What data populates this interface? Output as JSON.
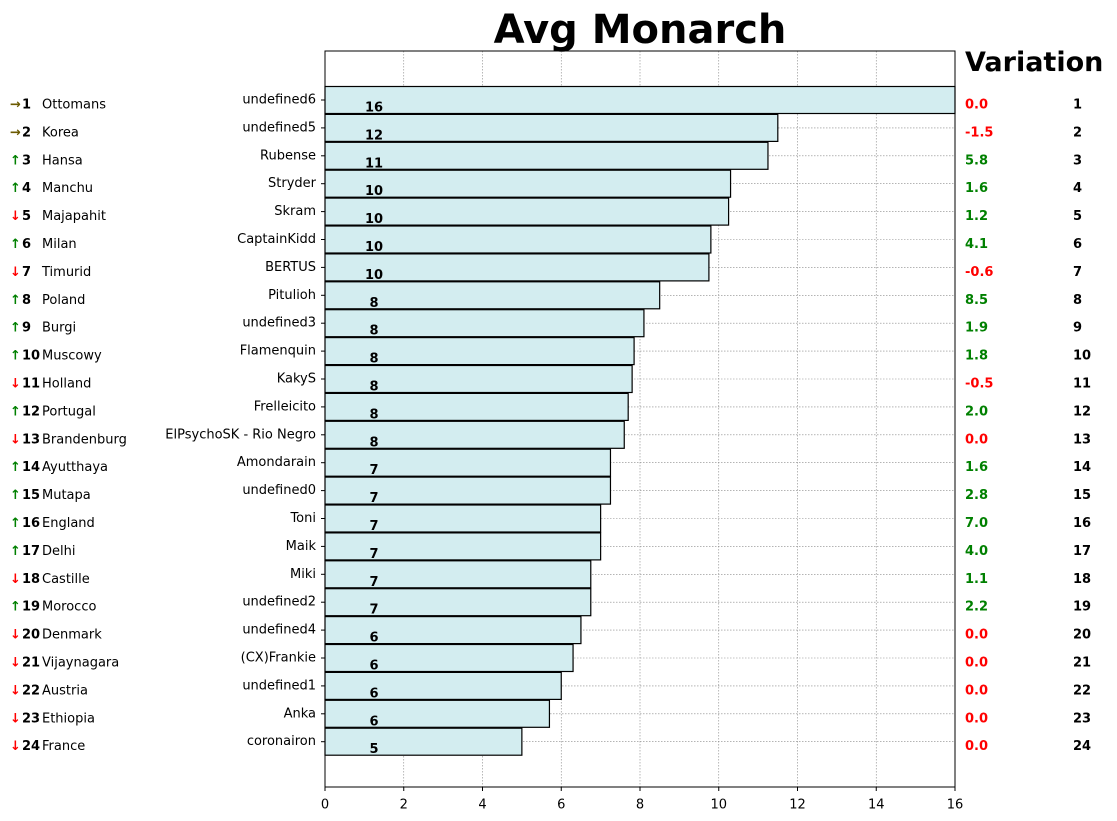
{
  "chart_data": {
    "type": "bar",
    "orientation": "horizontal",
    "title": "Avg Monarch",
    "variation_title": "Variation",
    "xlim": [
      0,
      16
    ],
    "xticks": [
      0,
      2,
      4,
      6,
      8,
      10,
      12,
      14,
      16
    ],
    "grid": true,
    "bar_color": "#d3edf0",
    "categories": [
      "undefined6",
      "undefined5",
      "Rubense",
      "Stryder",
      "Skram",
      "CaptainKidd",
      "BERTUS",
      "Pitulioh",
      "undefined3",
      "Flamenquin",
      "KakyS",
      "Frelleicito",
      "ElPsychoSK - Rio Negro",
      "Amondarain",
      "undefined0",
      "Toni",
      "Maik",
      "Miki",
      "undefined2",
      "undefined4",
      "(CX)Frankie",
      "undefined1",
      "Anka",
      "coronairon"
    ],
    "values": [
      16,
      11.5,
      11.25,
      10.3,
      10.25,
      9.8,
      9.75,
      8.5,
      8.1,
      7.85,
      7.8,
      7.7,
      7.6,
      7.25,
      7.25,
      7.0,
      7.0,
      6.75,
      6.75,
      6.5,
      6.3,
      6.0,
      5.7,
      5.0
    ],
    "bar_labels": [
      "16",
      "12",
      "11",
      "10",
      "10",
      "10",
      "10",
      "8",
      "8",
      "8",
      "8",
      "8",
      "8",
      "7",
      "7",
      "7",
      "7",
      "7",
      "7",
      "6",
      "6",
      "6",
      "6",
      "5"
    ],
    "variation": [
      "0.0",
      "-1.5",
      "5.8",
      "1.6",
      "1.2",
      "4.1",
      "-0.6",
      "8.5",
      "1.9",
      "1.8",
      "-0.5",
      "2.0",
      "0.0",
      "1.6",
      "2.8",
      "7.0",
      "4.0",
      "1.1",
      "2.2",
      "0.0",
      "0.0",
      "0.0",
      "0.0",
      "0.0"
    ],
    "right_ranks": [
      "1",
      "2",
      "3",
      "4",
      "5",
      "6",
      "7",
      "8",
      "9",
      "10",
      "11",
      "12",
      "13",
      "14",
      "15",
      "16",
      "17",
      "18",
      "19",
      "20",
      "21",
      "22",
      "23",
      "24"
    ],
    "left_ranking": {
      "arrows": [
        "→",
        "→",
        "↑",
        "↑",
        "↓",
        "↑",
        "↓",
        "↑",
        "↑",
        "↑",
        "↓",
        "↑",
        "↓",
        "↑",
        "↑",
        "↑",
        "↑",
        "↓",
        "↑",
        "↓",
        "↓",
        "↓",
        "↓",
        "↓"
      ],
      "ranks": [
        "1",
        "2",
        "3",
        "4",
        "5",
        "6",
        "7",
        "8",
        "9",
        "10",
        "11",
        "12",
        "13",
        "14",
        "15",
        "16",
        "17",
        "18",
        "19",
        "20",
        "21",
        "22",
        "23",
        "24"
      ],
      "names": [
        "Ottomans",
        "Korea",
        "Hansa",
        "Manchu",
        "Majapahit",
        "Milan",
        "Timurid",
        "Poland",
        "Burgi",
        "Muscowy",
        "Holland",
        "Portugal",
        "Brandenburg",
        "Ayutthaya",
        "Mutapa",
        "England",
        "Delhi",
        "Castille",
        "Morocco",
        "Denmark",
        "Vijaynagara",
        "Austria",
        "Ethiopia",
        "France"
      ]
    },
    "colors": {
      "up": "#008000",
      "down": "#ff0000",
      "same": "#6b5a00",
      "negative": "#ff0000",
      "positive": "#008000",
      "zero": "#ff0000"
    }
  }
}
